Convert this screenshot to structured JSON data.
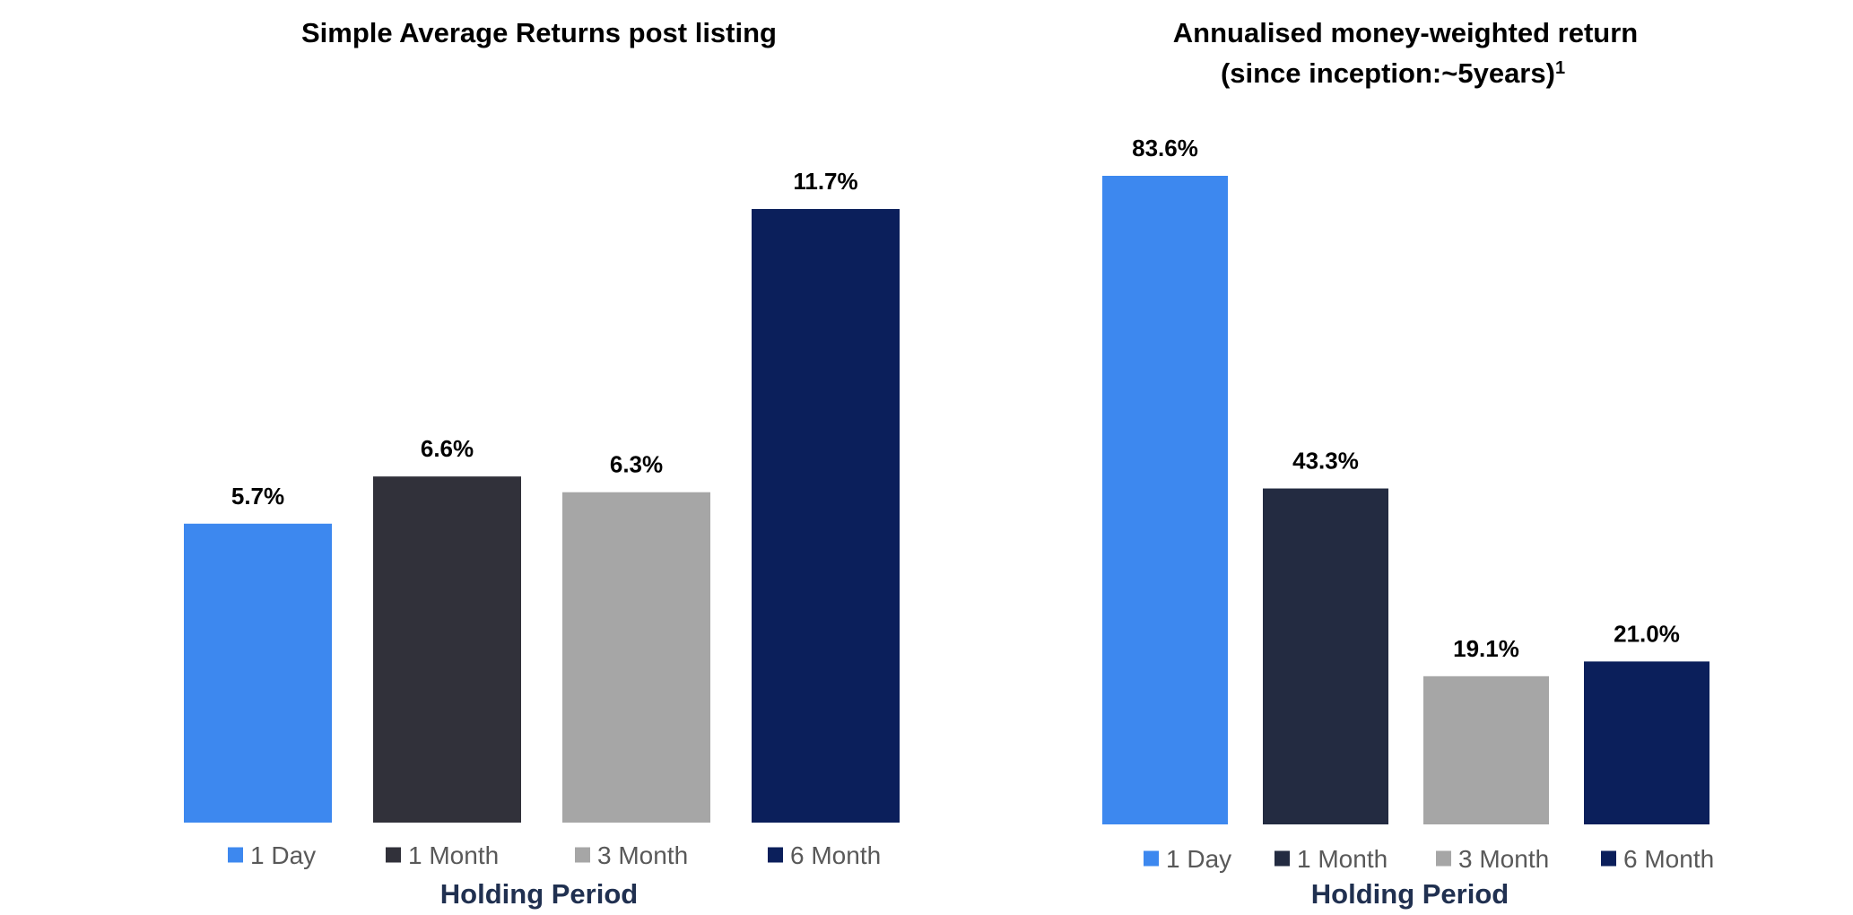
{
  "chart_data": [
    {
      "type": "bar",
      "title": "Simple Average Returns post listing",
      "title_superscript": "",
      "xlabel": "Holding Period",
      "ylabel": "",
      "categories": [
        "1 Day",
        "1 Month",
        "3 Month",
        "6 Month"
      ],
      "values": [
        5.7,
        6.6,
        6.3,
        11.7
      ],
      "value_labels": [
        "5.7%",
        "6.6%",
        "6.3%",
        "11.7%"
      ],
      "colors": [
        "#3D88EF",
        "#31313A",
        "#A6A6A6",
        "#0B1F5B"
      ],
      "ylim": [
        0,
        11.7
      ],
      "grid": false,
      "legend_position": "bottom",
      "legend": [
        "1 Day",
        "1 Month",
        "3 Month",
        "6 Month"
      ]
    },
    {
      "type": "bar",
      "title": "Annualised money-weighted return",
      "title_line2": "(since inception:~5years)",
      "title_superscript": "1",
      "xlabel": "Holding Period",
      "ylabel": "",
      "categories": [
        "1 Day",
        "1 Month",
        "3 Month",
        "6 Month"
      ],
      "values": [
        83.6,
        43.3,
        19.1,
        21.0
      ],
      "value_labels": [
        "83.6%",
        "43.3%",
        "19.1%",
        "21.0%"
      ],
      "colors": [
        "#3D88EF",
        "#232B41",
        "#A6A6A6",
        "#0B1F5B"
      ],
      "ylim": [
        0,
        83.6
      ],
      "grid": false,
      "legend_position": "bottom",
      "legend": [
        "1 Day",
        "1 Month",
        "3 Month",
        "6 Month"
      ]
    }
  ]
}
